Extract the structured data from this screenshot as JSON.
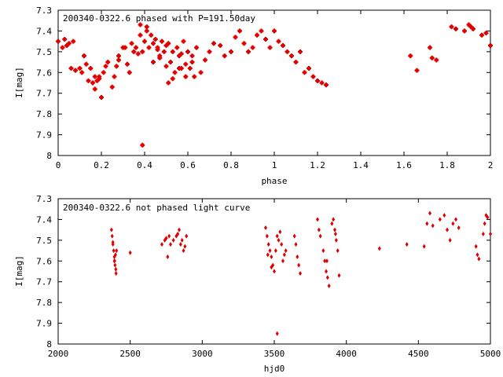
{
  "chart_data": [
    {
      "type": "scatter",
      "title": "200340-0322.6 phased with P=191.50day",
      "xlabel": "phase",
      "ylabel": "I[mag]",
      "xlim": [
        0,
        2
      ],
      "ylim": [
        8,
        7.3
      ],
      "y_inverted": true,
      "grid": false,
      "marker_color": "#e00000",
      "xticks": [
        "0",
        "0.2",
        "0.4",
        "0.6",
        "0.8",
        "1",
        "1.2",
        "1.4",
        "1.6",
        "1.8",
        "2"
      ],
      "yticks": [
        "7.3",
        "7.4",
        "7.5",
        "7.6",
        "7.7",
        "7.8",
        "7.9",
        "8"
      ],
      "x": [
        0.0,
        0.02,
        0.03,
        0.04,
        0.05,
        0.06,
        0.07,
        0.08,
        0.1,
        0.11,
        0.12,
        0.13,
        0.14,
        0.15,
        0.16,
        0.17,
        0.18,
        0.19,
        0.2,
        0.21,
        0.22,
        0.23,
        0.25,
        0.26,
        0.27,
        0.28,
        0.3,
        0.31,
        0.32,
        0.33,
        0.34,
        0.35,
        0.36,
        0.37,
        0.38,
        0.38,
        0.39,
        0.4,
        0.41,
        0.42,
        0.43,
        0.44,
        0.45,
        0.46,
        0.47,
        0.48,
        0.49,
        0.5,
        0.51,
        0.52,
        0.53,
        0.54,
        0.55,
        0.56,
        0.57,
        0.58,
        0.59,
        0.6,
        0.61,
        0.62,
        0.63,
        0.64,
        0.66,
        0.68,
        0.7,
        0.72,
        0.75,
        0.77,
        0.8,
        0.82,
        0.84,
        0.86,
        0.88,
        0.9,
        0.92,
        0.94,
        0.96,
        0.98,
        1.0,
        1.02,
        1.04,
        1.06,
        1.08,
        1.1,
        1.12,
        1.14,
        1.16,
        1.18,
        1.2,
        1.22,
        1.24,
        1.63,
        1.66,
        1.72,
        1.73,
        1.75,
        1.82,
        1.84,
        1.88,
        1.9,
        1.91,
        1.92,
        1.96,
        1.98,
        2.0,
        0.39,
        0.41,
        0.44,
        0.47,
        0.5,
        0.53,
        0.56,
        0.59,
        0.62,
        0.17,
        0.19,
        0.28,
        0.46,
        0.51,
        0.57
      ],
      "y": [
        7.45,
        7.48,
        7.44,
        7.47,
        7.46,
        7.58,
        7.45,
        7.59,
        7.58,
        7.6,
        7.52,
        7.56,
        7.64,
        7.58,
        7.65,
        7.62,
        7.64,
        7.62,
        7.72,
        7.6,
        7.57,
        7.55,
        7.67,
        7.62,
        7.57,
        7.52,
        7.48,
        7.48,
        7.56,
        7.6,
        7.46,
        7.5,
        7.48,
        7.51,
        7.42,
        7.37,
        7.5,
        7.45,
        7.38,
        7.48,
        7.42,
        7.46,
        7.44,
        7.48,
        7.52,
        7.45,
        7.5,
        7.47,
        7.46,
        7.55,
        7.5,
        7.6,
        7.48,
        7.52,
        7.58,
        7.45,
        7.62,
        7.5,
        7.58,
        7.55,
        7.62,
        7.48,
        7.6,
        7.54,
        7.5,
        7.46,
        7.47,
        7.52,
        7.5,
        7.43,
        7.4,
        7.46,
        7.5,
        7.48,
        7.42,
        7.4,
        7.44,
        7.48,
        7.4,
        7.45,
        7.47,
        7.5,
        7.52,
        7.55,
        7.5,
        7.6,
        7.58,
        7.62,
        7.64,
        7.65,
        7.66,
        7.52,
        7.59,
        7.48,
        7.53,
        7.54,
        7.38,
        7.39,
        7.4,
        7.37,
        7.38,
        7.39,
        7.42,
        7.41,
        7.47,
        7.95,
        7.4,
        7.55,
        7.53,
        7.57,
        7.63,
        7.58,
        7.56,
        7.52,
        7.68,
        7.63,
        7.54,
        7.49,
        7.65,
        7.51
      ],
      "data_labels": []
    },
    {
      "type": "scatter",
      "title": "200340-0322.6 not phased light curve",
      "xlabel": "hjd0",
      "ylabel": "I[mag]",
      "xlim": [
        2000,
        5000
      ],
      "ylim": [
        8,
        7.3
      ],
      "y_inverted": true,
      "grid": false,
      "marker_color": "#e00000",
      "xticks": [
        "2000",
        "2500",
        "3000",
        "3500",
        "4000",
        "4500",
        "5000"
      ],
      "yticks": [
        "7.3",
        "7.4",
        "7.5",
        "7.6",
        "7.7",
        "7.8",
        "7.9",
        "8"
      ],
      "x": [
        2370,
        2375,
        2380,
        2385,
        2390,
        2392,
        2395,
        2398,
        2400,
        2402,
        2405,
        2500,
        2720,
        2740,
        2750,
        2760,
        2770,
        2780,
        2800,
        2820,
        2830,
        2840,
        2850,
        2860,
        2870,
        2880,
        2890,
        3440,
        3450,
        3460,
        3470,
        3480,
        3490,
        3500,
        3510,
        3520,
        3530,
        3540,
        3550,
        3560,
        3570,
        3580,
        3640,
        3650,
        3660,
        3670,
        3680,
        3800,
        3810,
        3820,
        3840,
        3850,
        3860,
        3870,
        3880,
        3900,
        3910,
        3920,
        3930,
        3940,
        3950,
        4230,
        4420,
        4540,
        4560,
        4580,
        4600,
        4650,
        4680,
        4700,
        4720,
        4740,
        4760,
        4780,
        4900,
        4910,
        4920,
        4950,
        4960,
        4970,
        4980,
        5000,
        3520,
        2380,
        2390,
        3455,
        3480,
        3865,
        3925
      ],
      "y": [
        7.45,
        7.48,
        7.52,
        7.55,
        7.58,
        7.6,
        7.62,
        7.57,
        7.64,
        7.66,
        7.55,
        7.56,
        7.52,
        7.5,
        7.49,
        7.58,
        7.48,
        7.52,
        7.5,
        7.48,
        7.47,
        7.45,
        7.52,
        7.5,
        7.55,
        7.53,
        7.48,
        7.44,
        7.48,
        7.52,
        7.55,
        7.58,
        7.62,
        7.65,
        7.55,
        7.48,
        7.5,
        7.46,
        7.52,
        7.6,
        7.57,
        7.55,
        7.48,
        7.52,
        7.58,
        7.62,
        7.66,
        7.4,
        7.45,
        7.48,
        7.55,
        7.6,
        7.65,
        7.68,
        7.72,
        7.42,
        7.4,
        7.45,
        7.5,
        7.55,
        7.67,
        7.54,
        7.52,
        7.53,
        7.42,
        7.37,
        7.43,
        7.4,
        7.38,
        7.45,
        7.5,
        7.42,
        7.4,
        7.44,
        7.53,
        7.57,
        7.59,
        7.47,
        7.42,
        7.38,
        7.39,
        7.47,
        7.95,
        7.51,
        7.6,
        7.57,
        7.63,
        7.6,
        7.47
      ],
      "data_labels": []
    }
  ]
}
